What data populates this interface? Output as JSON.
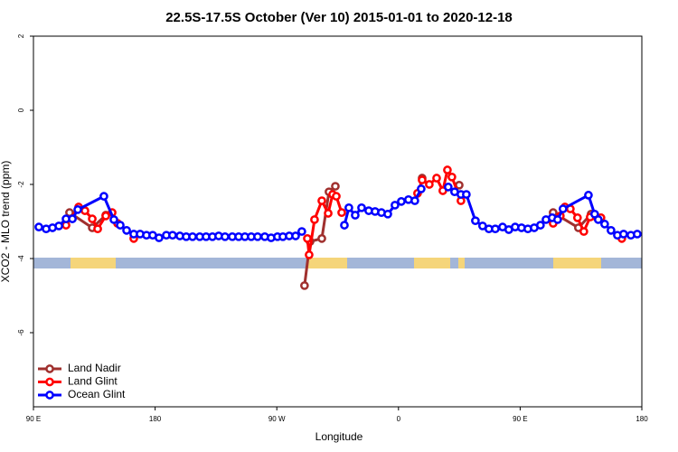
{
  "chart_data": {
    "type": "line",
    "title": "22.5S-17.5S October (Ver 10)   2015-01-01 to 2020-12-18",
    "xlabel": "Longitude",
    "ylabel": "XCO2 - MLO trend (ppm)",
    "xlim": [
      90,
      540
    ],
    "ylim": [
      -8,
      2
    ],
    "xticks": [
      {
        "value": 90,
        "label": "90 E"
      },
      180,
      {
        "value": 270,
        "label": "90 W"
      },
      {
        "value": 360,
        "label": "0"
      },
      {
        "value": 450,
        "label": "90 E"
      },
      {
        "value": 540,
        "label": "180"
      }
    ],
    "yticks": [
      2,
      0,
      -2,
      -4,
      -6
    ],
    "legend": "bottom-left",
    "series": [
      {
        "name": "Land Nadir",
        "color": "#a0302e",
        "x": [
          116.7,
          133.5,
          143.5,
          null,
          290.5,
          294.6,
          303.3,
          308.6,
          313.3,
          null,
          377.5,
          null,
          404.9,
          null,
          474.4,
          493.1,
          502.5
        ],
        "values": [
          -2.76,
          -3.17,
          -2.83,
          null,
          -4.73,
          -3.54,
          -3.46,
          -2.2,
          -2.05,
          null,
          -1.83,
          null,
          -2.02,
          null,
          -2.76,
          -3.17,
          -2.8
        ]
      },
      {
        "name": "Land Glint",
        "color": "#ff0000",
        "x": [
          114.1,
          123.4,
          128.1,
          133.5,
          137.5,
          143.5,
          148.2,
          152.2,
          null,
          164.2,
          null,
          292.6,
          293.9,
          297.9,
          303.3,
          308.0,
          311.3,
          314.0,
          318.0,
          null,
          374.1,
          377.5,
          382.8,
          388.2,
          392.8,
          396.2,
          399.5,
          406.2,
          null,
          474.4,
          479.7,
          483.1,
          487.1,
          492.4,
          497.1,
          501.8,
          506.5,
          509.8,
          null,
          525.2
        ],
        "values": [
          -3.1,
          -2.61,
          -2.71,
          -2.93,
          -3.2,
          -2.85,
          -2.76,
          -3.05,
          null,
          -3.46,
          null,
          -3.46,
          -3.9,
          -2.95,
          -2.44,
          -2.78,
          -2.27,
          -2.32,
          -2.76,
          null,
          -2.24,
          -1.88,
          -2.0,
          -1.83,
          -2.17,
          -1.61,
          -1.8,
          -2.44,
          null,
          -3.05,
          -2.85,
          -2.61,
          -2.66,
          -2.9,
          -3.27,
          -2.88,
          -2.88,
          -2.9,
          null,
          -3.46
        ]
      },
      {
        "name": "Ocean Glint",
        "color": "#0000ff",
        "x": [
          94.0,
          99.4,
          104.1,
          108.8,
          114.1,
          118.8,
          122.8,
          142.1,
          149.5,
          154.2,
          158.9,
          164.2,
          168.9,
          173.6,
          178.2,
          182.9,
          188.3,
          192.9,
          198.3,
          203.0,
          207.7,
          213.0,
          217.7,
          222.4,
          227.0,
          231.7,
          237.1,
          241.8,
          246.4,
          251.1,
          255.8,
          261.1,
          265.8,
          270.5,
          274.5,
          279.2,
          283.9,
          288.5,
          null,
          320.0,
          323.3,
          328.0,
          332.7,
          338.0,
          342.7,
          347.4,
          352.1,
          357.4,
          362.1,
          367.4,
          372.1,
          376.8,
          null,
          396.8,
          401.5,
          406.2,
          410.2,
          416.9,
          422.2,
          426.9,
          431.6,
          437.0,
          441.6,
          446.3,
          451.0,
          455.7,
          460.4,
          465.0,
          469.1,
          473.7,
          477.7,
          481.7,
          500.5,
          505.1,
          507.8,
          512.5,
          517.2,
          521.9,
          526.5,
          531.9,
          536.6
        ],
        "values": [
          -3.15,
          -3.2,
          -3.17,
          -3.12,
          -2.93,
          -2.93,
          -2.68,
          -2.32,
          -2.95,
          -3.1,
          -3.24,
          -3.34,
          -3.34,
          -3.37,
          -3.37,
          -3.44,
          -3.37,
          -3.37,
          -3.39,
          -3.41,
          -3.41,
          -3.41,
          -3.41,
          -3.41,
          -3.39,
          -3.41,
          -3.41,
          -3.41,
          -3.41,
          -3.41,
          -3.41,
          -3.41,
          -3.44,
          -3.41,
          -3.41,
          -3.39,
          -3.39,
          -3.27,
          null,
          -3.1,
          -2.63,
          -2.83,
          -2.63,
          -2.71,
          -2.73,
          -2.76,
          -2.8,
          -2.56,
          -2.46,
          -2.41,
          -2.44,
          -2.12,
          null,
          -2.07,
          -2.2,
          -2.27,
          -2.27,
          -2.98,
          -3.12,
          -3.2,
          -3.2,
          -3.15,
          -3.22,
          -3.15,
          -3.17,
          -3.2,
          -3.17,
          -3.1,
          -2.95,
          -2.9,
          -2.95,
          -2.66,
          -2.29,
          -2.8,
          -2.95,
          -3.07,
          -3.24,
          -3.37,
          -3.34,
          -3.37,
          -3.34
        ]
      }
    ]
  }
}
